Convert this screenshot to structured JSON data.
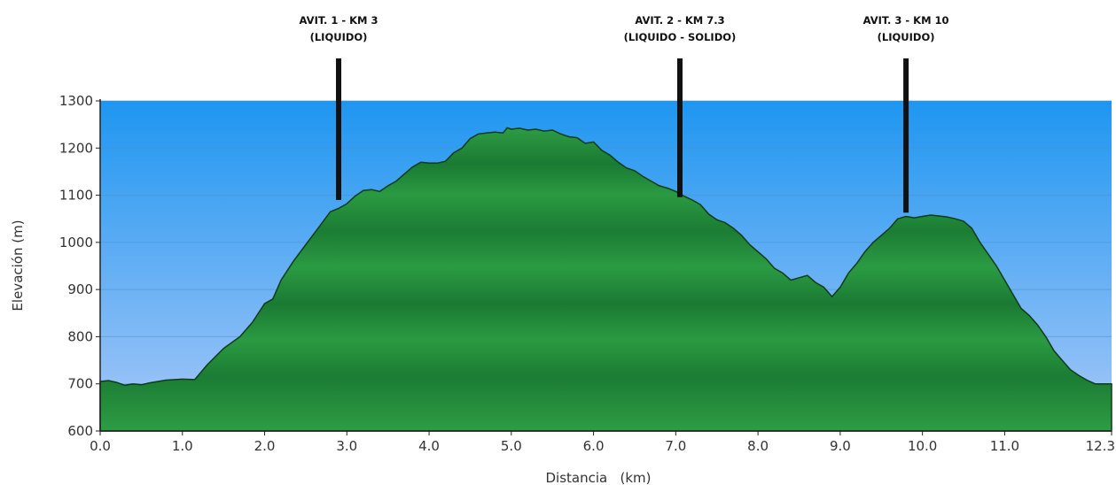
{
  "chart_data": {
    "type": "area",
    "title": "",
    "xlabel": "Distancia   (km)",
    "ylabel": "Elevación (m)",
    "xlim": [
      0,
      12.3
    ],
    "ylim": [
      600,
      1300
    ],
    "x_ticks": [
      "0.0",
      "1.0",
      "2.0",
      "3.0",
      "4.0",
      "5.0",
      "6.0",
      "7.0",
      "8.0",
      "9.0",
      "10.0",
      "11.0",
      "12.3"
    ],
    "y_ticks": [
      "600",
      "700",
      "800",
      "900",
      "1000",
      "1100",
      "1200",
      "1300"
    ],
    "grid": "horizontal",
    "colors": {
      "sky_top": "#1e96f0",
      "sky_bottom": "#a8c8f8",
      "fill": "#1f8f3a",
      "fill_dark": "#0e5e22",
      "outline": "#0d3b1a"
    },
    "series": [
      {
        "x": [
          0.0,
          0.1,
          0.2,
          0.3,
          0.4,
          0.5,
          0.6,
          0.8,
          1.0,
          1.15,
          1.3,
          1.5,
          1.7,
          1.85,
          2.0,
          2.1,
          2.2,
          2.35,
          2.5,
          2.65,
          2.8,
          2.9,
          3.0,
          3.1,
          3.2,
          3.3,
          3.4,
          3.5,
          3.6,
          3.7,
          3.8,
          3.9,
          4.0,
          4.1,
          4.2,
          4.3,
          4.4,
          4.5,
          4.6,
          4.7,
          4.8,
          4.9,
          4.95,
          5.0,
          5.1,
          5.2,
          5.3,
          5.4,
          5.5,
          5.6,
          5.7,
          5.8,
          5.9,
          6.0,
          6.1,
          6.2,
          6.3,
          6.4,
          6.5,
          6.6,
          6.7,
          6.8,
          6.9,
          7.0,
          7.1,
          7.2,
          7.3,
          7.4,
          7.5,
          7.6,
          7.7,
          7.8,
          7.9,
          8.0,
          8.1,
          8.2,
          8.3,
          8.4,
          8.5,
          8.6,
          8.7,
          8.8,
          8.9,
          9.0,
          9.1,
          9.2,
          9.3,
          9.4,
          9.5,
          9.6,
          9.7,
          9.8,
          9.9,
          10.0,
          10.1,
          10.2,
          10.3,
          10.4,
          10.5,
          10.6,
          10.7,
          10.8,
          10.9,
          11.0,
          11.1,
          11.2,
          11.3,
          11.4,
          11.5,
          11.6,
          11.7,
          11.8,
          11.9,
          12.0,
          12.1,
          12.2,
          12.3
        ],
        "y": [
          705,
          707,
          703,
          697,
          700,
          698,
          702,
          708,
          710,
          709,
          740,
          775,
          800,
          830,
          870,
          880,
          920,
          960,
          995,
          1030,
          1065,
          1072,
          1082,
          1098,
          1110,
          1112,
          1108,
          1120,
          1130,
          1145,
          1160,
          1170,
          1168,
          1168,
          1172,
          1190,
          1200,
          1220,
          1230,
          1232,
          1234,
          1232,
          1243,
          1240,
          1242,
          1238,
          1240,
          1236,
          1238,
          1230,
          1224,
          1222,
          1210,
          1213,
          1195,
          1185,
          1170,
          1158,
          1152,
          1140,
          1130,
          1120,
          1115,
          1108,
          1098,
          1090,
          1080,
          1060,
          1048,
          1042,
          1030,
          1015,
          995,
          980,
          965,
          945,
          935,
          920,
          925,
          930,
          915,
          905,
          885,
          905,
          935,
          955,
          980,
          1000,
          1015,
          1030,
          1050,
          1055,
          1052,
          1055,
          1058,
          1056,
          1054,
          1050,
          1045,
          1030,
          1000,
          975,
          950,
          920,
          890,
          860,
          845,
          825,
          800,
          770,
          750,
          730,
          718,
          708,
          700,
          700,
          700
        ]
      }
    ],
    "annotations": [
      {
        "x": 2.9,
        "y_bottom": 1090,
        "line1": "AVIT. 1 - KM 3",
        "line2": "(LIQUIDO)"
      },
      {
        "x": 7.05,
        "y_bottom": 1096,
        "line1": "AVIT. 2 - KM 7.3",
        "line2": "(LIQUIDO - SOLIDO)"
      },
      {
        "x": 9.8,
        "y_bottom": 1063,
        "line1": "AVIT. 3 - KM 10",
        "line2": "(LIQUIDO)"
      }
    ]
  }
}
